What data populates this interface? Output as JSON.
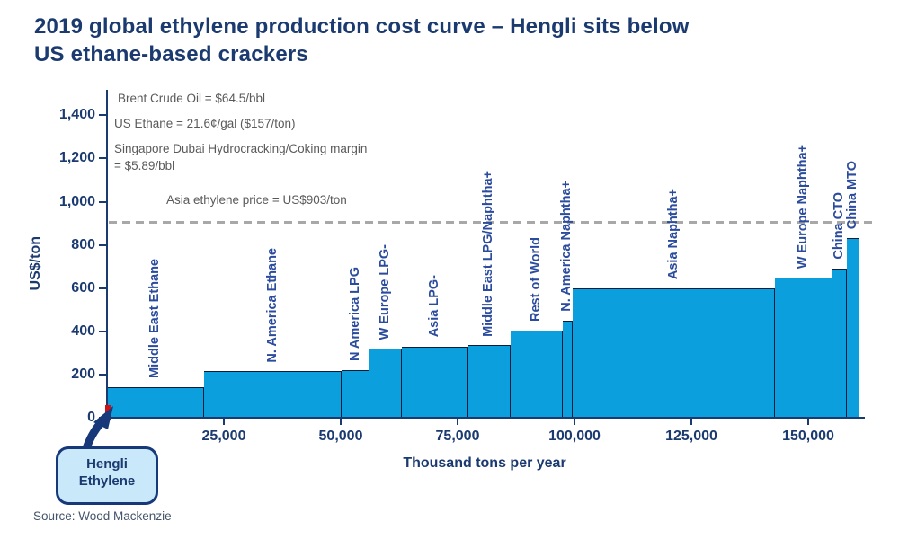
{
  "title": {
    "line1": "2019 global ethylene production cost curve – Hengli sits below",
    "line2": "US ethane-based crackers"
  },
  "annotations": {
    "brent": "Brent Crude Oil = $64.5/bbl",
    "us_ethane": "US Ethane = 21.6¢/gal  ($157/ton)",
    "singapore_line1": "Singapore Dubai Hydrocracking/Coking margin",
    "singapore_line2": "= $5.89/bbl",
    "asia_price": "Asia ethylene price =  US$903/ton"
  },
  "callout": {
    "line1": "Hengli",
    "line2": "Ethylene"
  },
  "source": "Source: Wood Mackenzie",
  "colors": {
    "navy_text": "#1B3A70",
    "bar_fill": "#0C9FDD",
    "bar_border": "#0A1E3C",
    "bar_label": "#2B4B9D",
    "reference_dash": "#A8A8A8",
    "annotation_gray": "#5A5A5A",
    "highlight_red": "#D21013",
    "callout_fill": "#C9E8FA",
    "source_gray": "#44546A"
  },
  "chart_data": {
    "type": "bar",
    "variant": "variable-width cost curve (contiguous step bars)",
    "title": "2019 global ethylene production cost curve",
    "xlabel": "Thousand tons per year",
    "ylabel": "US$/ton",
    "xlim": [
      0,
      163000
    ],
    "ylim": [
      0,
      1400
    ],
    "grid": false,
    "legend": false,
    "xticks": [
      {
        "value": 25000,
        "label": "25,000"
      },
      {
        "value": 50000,
        "label": "50,000"
      },
      {
        "value": 75000,
        "label": "75,000"
      },
      {
        "value": 100000,
        "label": "100,000"
      },
      {
        "value": 125000,
        "label": "125,000"
      },
      {
        "value": 150000,
        "label": "150,000"
      }
    ],
    "yticks": [
      {
        "value": 0,
        "label": "0"
      },
      {
        "value": 200,
        "label": "200"
      },
      {
        "value": 400,
        "label": "400"
      },
      {
        "value": 600,
        "label": "600"
      },
      {
        "value": 800,
        "label": "800"
      },
      {
        "value": 1000,
        "label": "1,000"
      },
      {
        "value": 1200,
        "label": "1,200"
      },
      {
        "value": 1400,
        "label": "1,400"
      }
    ],
    "reference_line": {
      "value": 903,
      "label": "Asia ethylene price =  US$903/ton",
      "style": "dashed"
    },
    "segments": [
      {
        "label": "Middle East Ethane",
        "from_kt": 0,
        "to_kt": 20800,
        "cost_usd_per_ton": 140
      },
      {
        "label": "N. America Ethane",
        "from_kt": 20800,
        "to_kt": 50200,
        "cost_usd_per_ton": 215
      },
      {
        "label": "N America LPG",
        "from_kt": 50200,
        "to_kt": 56200,
        "cost_usd_per_ton": 220
      },
      {
        "label": "W Europe LPG-",
        "from_kt": 56200,
        "to_kt": 63100,
        "cost_usd_per_ton": 320
      },
      {
        "label": "Asia LPG-",
        "from_kt": 63100,
        "to_kt": 77300,
        "cost_usd_per_ton": 330
      },
      {
        "label": "Middle East LPG/Naphtha+",
        "from_kt": 77300,
        "to_kt": 86300,
        "cost_usd_per_ton": 335
      },
      {
        "label": "Rest of World",
        "from_kt": 86300,
        "to_kt": 97500,
        "cost_usd_per_ton": 405
      },
      {
        "label": "N. America Naphtha+",
        "from_kt": 97500,
        "to_kt": 99600,
        "cost_usd_per_ton": 450
      },
      {
        "label": "Asia Naphtha+",
        "from_kt": 99600,
        "to_kt": 142900,
        "cost_usd_per_ton": 600
      },
      {
        "label": "W Europe Naphtha+",
        "from_kt": 142900,
        "to_kt": 155200,
        "cost_usd_per_ton": 650
      },
      {
        "label": "China CTO",
        "from_kt": 155200,
        "to_kt": 158300,
        "cost_usd_per_ton": 690
      },
      {
        "label": "China MTO",
        "from_kt": 158300,
        "to_kt": 161000,
        "cost_usd_per_ton": 830
      }
    ],
    "highlight": {
      "label": "Hengli Ethylene",
      "from_kt": 0,
      "to_kt": 1000,
      "cost_usd_per_ton": 60
    }
  }
}
